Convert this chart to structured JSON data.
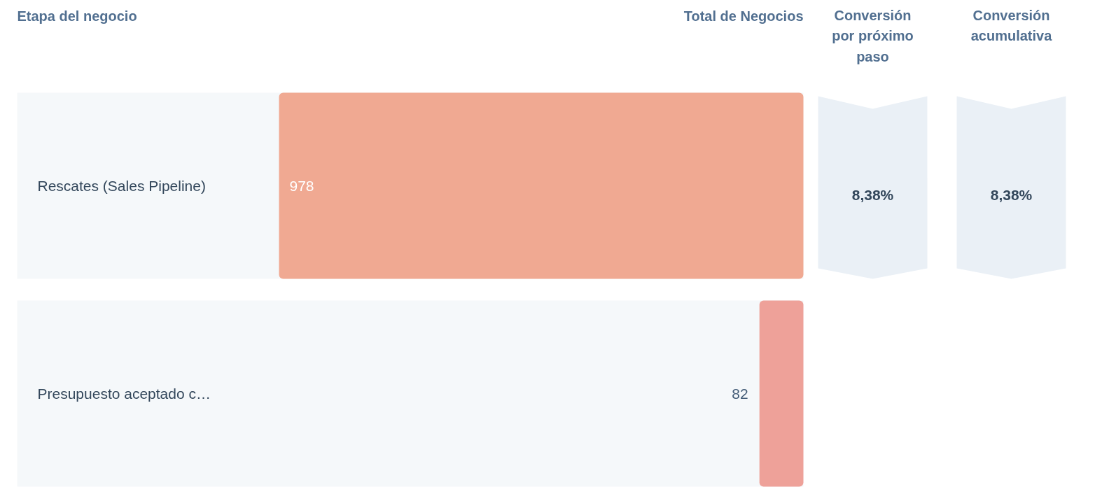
{
  "chart_data": {
    "type": "bar",
    "orientation": "horizontal",
    "ylabel": "Etapa del negocio",
    "xlabel": "Total de Negocios",
    "categories": [
      "Rescates (Sales Pipeline)",
      "Presupuesto aceptado c…"
    ],
    "values": [
      978,
      82
    ],
    "colors": [
      "#f0a992",
      "#eea199"
    ],
    "data_labels": true,
    "tick_labels": "y",
    "annotations": [
      "Conversión por próximo paso",
      "8,38%",
      "Conversión acumulativa",
      "8,38%"
    ]
  }
}
